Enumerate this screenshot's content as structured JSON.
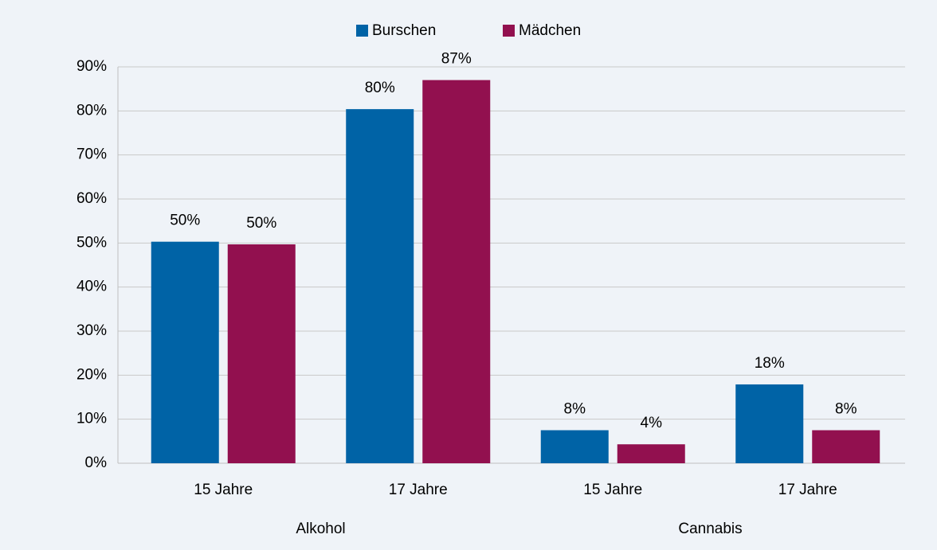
{
  "chart_data": {
    "type": "bar",
    "categories": [
      "15 Jahre",
      "17 Jahre",
      "15 Jahre",
      "17 Jahre"
    ],
    "groups": [
      "Alkohol",
      "Cannabis"
    ],
    "series": [
      {
        "name": "Burschen",
        "color": "#0063a6",
        "values": [
          50.3,
          80.4,
          7.5,
          17.9
        ],
        "value_labels": [
          "50%",
          "80%",
          "8%",
          "18%"
        ]
      },
      {
        "name": "Mädchen",
        "color": "#92104f",
        "values": [
          49.7,
          87.0,
          4.3,
          7.5
        ],
        "value_labels": [
          "50%",
          "87%",
          "4%",
          "8%"
        ]
      }
    ],
    "ylim": [
      0,
      90
    ],
    "yticks": [
      {
        "value": 0,
        "label": "0%"
      },
      {
        "value": 10,
        "label": "10%"
      },
      {
        "value": 20,
        "label": "20%"
      },
      {
        "value": 30,
        "label": "30%"
      },
      {
        "value": 40,
        "label": "40%"
      },
      {
        "value": 50,
        "label": "50%"
      },
      {
        "value": 60,
        "label": "60%"
      },
      {
        "value": 70,
        "label": "70%"
      },
      {
        "value": 80,
        "label": "80%"
      },
      {
        "value": 90,
        "label": "90%"
      }
    ],
    "grid": true,
    "legend": "top"
  }
}
